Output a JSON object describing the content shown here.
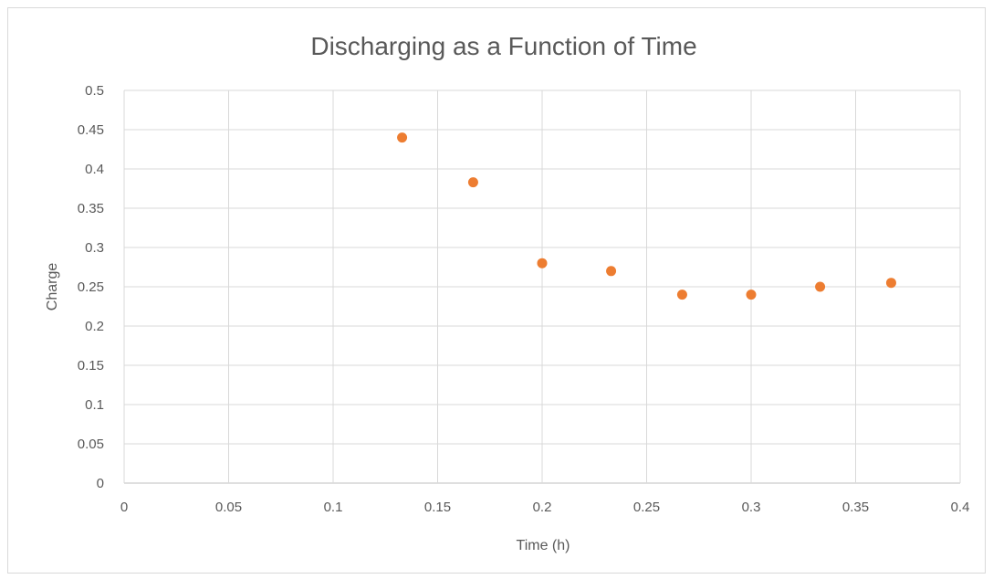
{
  "chart_data": {
    "type": "scatter",
    "title": "Discharging as a Function of Time",
    "xlabel": "Time (h)",
    "ylabel": "Charge",
    "xlim": [
      0,
      0.4
    ],
    "ylim": [
      0,
      0.5
    ],
    "x_ticks": [
      "0",
      "0.05",
      "0.1",
      "0.15",
      "0.2",
      "0.25",
      "0.3",
      "0.35",
      "0.4"
    ],
    "y_ticks": [
      "0",
      "0.05",
      "0.1",
      "0.15",
      "0.2",
      "0.25",
      "0.3",
      "0.35",
      "0.4",
      "0.45",
      "0.5"
    ],
    "grid": true,
    "legend": "none",
    "series": [
      {
        "color": "#ed7d31",
        "points": [
          {
            "x": 0.133,
            "y": 0.44
          },
          {
            "x": 0.167,
            "y": 0.383
          },
          {
            "x": 0.2,
            "y": 0.28
          },
          {
            "x": 0.233,
            "y": 0.27
          },
          {
            "x": 0.267,
            "y": 0.24
          },
          {
            "x": 0.3,
            "y": 0.24
          },
          {
            "x": 0.333,
            "y": 0.25
          },
          {
            "x": 0.367,
            "y": 0.255
          }
        ]
      }
    ]
  }
}
